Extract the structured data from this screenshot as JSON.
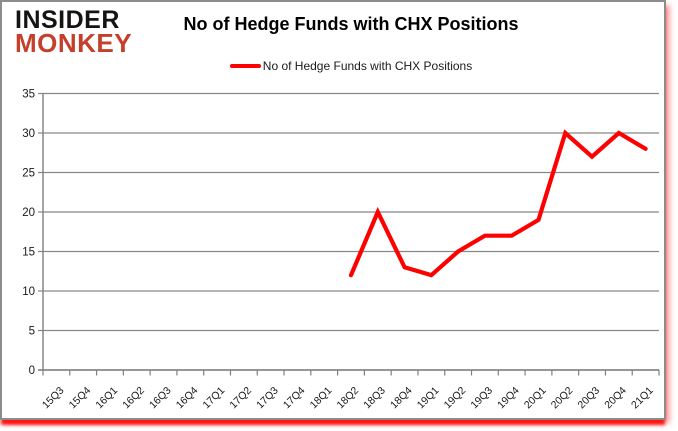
{
  "logo": {
    "line1": "INSIDER",
    "line2": "MONKEY"
  },
  "header": {
    "title": "No of Hedge Funds with CHX Positions"
  },
  "legend": {
    "label": "No of Hedge Funds with CHX Positions"
  },
  "colors": {
    "series": "#ff0000",
    "gridline": "#878787",
    "axis": "#7f7f7f",
    "tick_label": "#1a1a1a",
    "logo_black": "#161412",
    "logo_red": "#c4402b",
    "card_border": "#8c8c8c",
    "shadow_red": "#ff0505"
  },
  "chart_data": {
    "type": "line",
    "title": "No of Hedge Funds with CHX Positions",
    "categories": [
      "15Q3",
      "15Q4",
      "16Q1",
      "16Q2",
      "16Q3",
      "16Q4",
      "17Q1",
      "17Q2",
      "17Q3",
      "17Q4",
      "18Q1",
      "18Q2",
      "18Q3",
      "18Q4",
      "19Q1",
      "19Q2",
      "19Q3",
      "19Q4",
      "20Q1",
      "20Q2",
      "20Q3",
      "20Q4",
      "21Q1"
    ],
    "series": [
      {
        "name": "No of Hedge Funds with CHX Positions",
        "color": "#ff0000",
        "values": [
          null,
          null,
          null,
          null,
          null,
          null,
          null,
          null,
          null,
          null,
          null,
          12,
          20,
          13,
          12,
          15,
          17,
          17,
          19,
          30,
          27,
          30,
          28
        ]
      }
    ],
    "xlabel": "",
    "ylabel": "",
    "ylim": [
      0,
      35
    ],
    "ytick_interval": 5,
    "grid": true,
    "legend_position": "top"
  }
}
